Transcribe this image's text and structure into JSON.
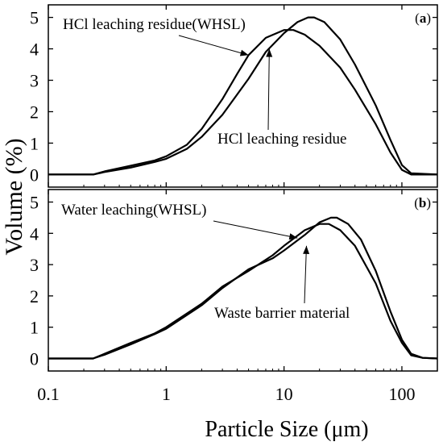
{
  "chart_data": [
    {
      "type": "line",
      "panel_label": "(a)",
      "panel_letter": "a",
      "xscale": "log",
      "xlim": [
        0.1,
        200
      ],
      "ylim": [
        -0.4,
        5.4
      ],
      "x_ticks": [
        0.1,
        1,
        10,
        100
      ],
      "y_ticks": [
        0,
        1,
        2,
        3,
        4,
        5
      ],
      "grid": false,
      "series": [
        {
          "name": "HCl leaching residue(WHSL)",
          "points": [
            [
              0.1,
              0
            ],
            [
              0.24,
              0
            ],
            [
              0.3,
              0.1
            ],
            [
              0.5,
              0.28
            ],
            [
              0.8,
              0.45
            ],
            [
              1.0,
              0.58
            ],
            [
              1.5,
              0.95
            ],
            [
              2.0,
              1.45
            ],
            [
              3.0,
              2.4
            ],
            [
              4.0,
              3.2
            ],
            [
              5.0,
              3.8
            ],
            [
              7.0,
              4.35
            ],
            [
              10.0,
              4.6
            ],
            [
              12.0,
              4.6
            ],
            [
              15.0,
              4.45
            ],
            [
              20.0,
              4.1
            ],
            [
              30.0,
              3.4
            ],
            [
              40.0,
              2.7
            ],
            [
              60.0,
              1.6
            ],
            [
              80.0,
              0.7
            ],
            [
              100.0,
              0.15
            ],
            [
              120.0,
              0
            ],
            [
              200.0,
              0
            ]
          ]
        },
        {
          "name": "HCl leaching residue",
          "points": [
            [
              0.1,
              0
            ],
            [
              0.24,
              0
            ],
            [
              0.3,
              0.08
            ],
            [
              0.5,
              0.22
            ],
            [
              0.8,
              0.4
            ],
            [
              1.0,
              0.5
            ],
            [
              1.5,
              0.82
            ],
            [
              2.0,
              1.2
            ],
            [
              3.0,
              1.9
            ],
            [
              5.0,
              3.05
            ],
            [
              7.0,
              3.9
            ],
            [
              10.0,
              4.5
            ],
            [
              13.0,
              4.85
            ],
            [
              16.0,
              5.0
            ],
            [
              18.0,
              5.0
            ],
            [
              22.0,
              4.85
            ],
            [
              30.0,
              4.3
            ],
            [
              40.0,
              3.5
            ],
            [
              60.0,
              2.2
            ],
            [
              80.0,
              1.1
            ],
            [
              100.0,
              0.3
            ],
            [
              120.0,
              0.04
            ],
            [
              200.0,
              0
            ]
          ]
        }
      ],
      "annotations": [
        {
          "text": "HCl leaching residue(WHSL)",
          "target": [
            5.0,
            3.8
          ]
        },
        {
          "text": "HCl leaching residue",
          "target": [
            7.5,
            4.0
          ]
        }
      ]
    },
    {
      "type": "line",
      "panel_label": "(b)",
      "panel_letter": "b",
      "xscale": "log",
      "xlim": [
        0.1,
        200
      ],
      "ylim": [
        -0.4,
        5.4
      ],
      "x_ticks": [
        0.1,
        1,
        10,
        100
      ],
      "y_ticks": [
        0,
        1,
        2,
        3,
        4,
        5
      ],
      "xlabel": "Particle Size (μm)",
      "grid": false,
      "series": [
        {
          "name": "Water leaching(WHSL)",
          "points": [
            [
              0.1,
              0
            ],
            [
              0.24,
              0
            ],
            [
              0.3,
              0.15
            ],
            [
              0.5,
              0.5
            ],
            [
              0.8,
              0.8
            ],
            [
              1.0,
              1.0
            ],
            [
              2.0,
              1.75
            ],
            [
              3.0,
              2.3
            ],
            [
              5.0,
              2.8
            ],
            [
              8.0,
              3.3
            ],
            [
              10.0,
              3.6
            ],
            [
              15.0,
              4.1
            ],
            [
              20.0,
              4.3
            ],
            [
              24.0,
              4.3
            ],
            [
              30.0,
              4.1
            ],
            [
              40.0,
              3.6
            ],
            [
              60.0,
              2.4
            ],
            [
              80.0,
              1.2
            ],
            [
              100.0,
              0.5
            ],
            [
              120.0,
              0.1
            ],
            [
              150.0,
              0.02
            ],
            [
              200.0,
              0
            ]
          ]
        },
        {
          "name": "Waste barrier material",
          "points": [
            [
              0.1,
              0
            ],
            [
              0.24,
              0
            ],
            [
              0.3,
              0.12
            ],
            [
              0.5,
              0.45
            ],
            [
              0.8,
              0.78
            ],
            [
              1.0,
              0.95
            ],
            [
              2.0,
              1.7
            ],
            [
              3.0,
              2.25
            ],
            [
              5.0,
              2.85
            ],
            [
              8.0,
              3.2
            ],
            [
              10.0,
              3.45
            ],
            [
              15.0,
              3.95
            ],
            [
              20.0,
              4.35
            ],
            [
              25.0,
              4.5
            ],
            [
              28.0,
              4.5
            ],
            [
              35.0,
              4.3
            ],
            [
              45.0,
              3.8
            ],
            [
              60.0,
              2.8
            ],
            [
              80.0,
              1.5
            ],
            [
              100.0,
              0.6
            ],
            [
              120.0,
              0.15
            ],
            [
              150.0,
              0.02
            ],
            [
              200.0,
              0
            ]
          ]
        }
      ],
      "annotations": [
        {
          "text": "Water leaching(WHSL)",
          "target": [
            13.0,
            3.85
          ]
        },
        {
          "text": "Waste barrier material",
          "target": [
            15.5,
            3.6
          ]
        }
      ]
    }
  ],
  "figure": {
    "ylabel": "Volume (%)",
    "xlabel": "Particle Size (μm)",
    "x_tick_labels": [
      "0.1",
      "1",
      "10",
      "100"
    ],
    "y_tick_labels": [
      "0",
      "1",
      "2",
      "3",
      "4",
      "5"
    ]
  }
}
